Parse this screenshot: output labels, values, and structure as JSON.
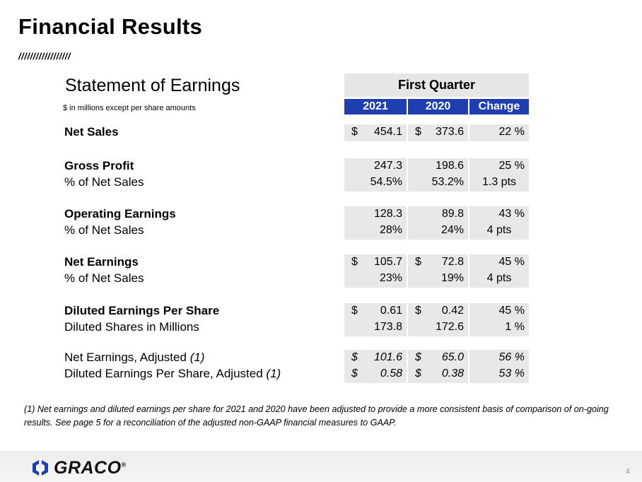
{
  "header": {
    "title": "Financial Results",
    "slashes": "//////////////////"
  },
  "statement": {
    "title": "Statement of Earnings",
    "units": "$ in millions except per share amounts",
    "period": "First Quarter",
    "columns": [
      "2021",
      "2020",
      "Change"
    ],
    "groups": [
      {
        "style": "bold",
        "rows": [
          {
            "label": "Net Sales",
            "cells": [
              {
                "sign": "$",
                "amount": "454.1"
              },
              {
                "sign": "$",
                "amount": "373.6"
              },
              {
                "amount": "22 %"
              }
            ]
          }
        ]
      },
      {
        "style": "bold",
        "rows": [
          {
            "label": "Gross Profit",
            "cells": [
              {
                "amount": "247.3"
              },
              {
                "amount": "198.6"
              },
              {
                "amount": "25 %"
              }
            ]
          },
          {
            "label": "% of Net Sales",
            "cells": [
              {
                "amount": "54.5%"
              },
              {
                "amount": "53.2%"
              },
              {
                "amount": "1.3 pts"
              }
            ]
          }
        ]
      },
      {
        "style": "bold",
        "rows": [
          {
            "label": "Operating Earnings",
            "cells": [
              {
                "amount": "128.3"
              },
              {
                "amount": "89.8"
              },
              {
                "amount": "43 %"
              }
            ]
          },
          {
            "label": "% of Net Sales",
            "cells": [
              {
                "amount": "28%"
              },
              {
                "amount": "24%"
              },
              {
                "amount": "4 pts"
              }
            ]
          }
        ]
      },
      {
        "style": "bold",
        "rows": [
          {
            "label": "Net Earnings",
            "cells": [
              {
                "sign": "$",
                "amount": "105.7"
              },
              {
                "sign": "$",
                "amount": "72.8"
              },
              {
                "amount": "45 %"
              }
            ]
          },
          {
            "label": "% of Net Sales",
            "cells": [
              {
                "amount": "23%"
              },
              {
                "amount": "19%"
              },
              {
                "amount": "4 pts"
              }
            ]
          }
        ]
      },
      {
        "style": "bold",
        "rows": [
          {
            "label": "Diluted Earnings Per Share",
            "cells": [
              {
                "sign": "$",
                "amount": "0.61"
              },
              {
                "sign": "$",
                "amount": "0.42"
              },
              {
                "amount": "45 %"
              }
            ]
          },
          {
            "label": "Diluted Shares in Millions",
            "cells": [
              {
                "amount": "173.8"
              },
              {
                "amount": "172.6"
              },
              {
                "amount": "1 %"
              }
            ]
          }
        ]
      },
      {
        "style": "italic",
        "rows": [
          {
            "label": "Net Earnings, Adjusted",
            "note": "(1)",
            "cells": [
              {
                "sign": "$",
                "amount": "101.6"
              },
              {
                "sign": "$",
                "amount": "65.0"
              },
              {
                "amount": "56 %"
              }
            ]
          },
          {
            "label": "Diluted Earnings Per Share, Adjusted",
            "note": "(1)",
            "cells": [
              {
                "sign": "$",
                "amount": "0.58"
              },
              {
                "sign": "$",
                "amount": "0.38"
              },
              {
                "amount": "53 %"
              }
            ]
          }
        ]
      }
    ]
  },
  "footnote": "(1) Net earnings and diluted earnings per share for 2021 and 2020 have been adjusted to provide a more consistent basis of comparison of on-going results.  See page 5 for a reconciliation of the adjusted non-GAAP financial measures to GAAP.",
  "footer": {
    "logo": "GRACO",
    "mark": "®",
    "page": "4"
  }
}
